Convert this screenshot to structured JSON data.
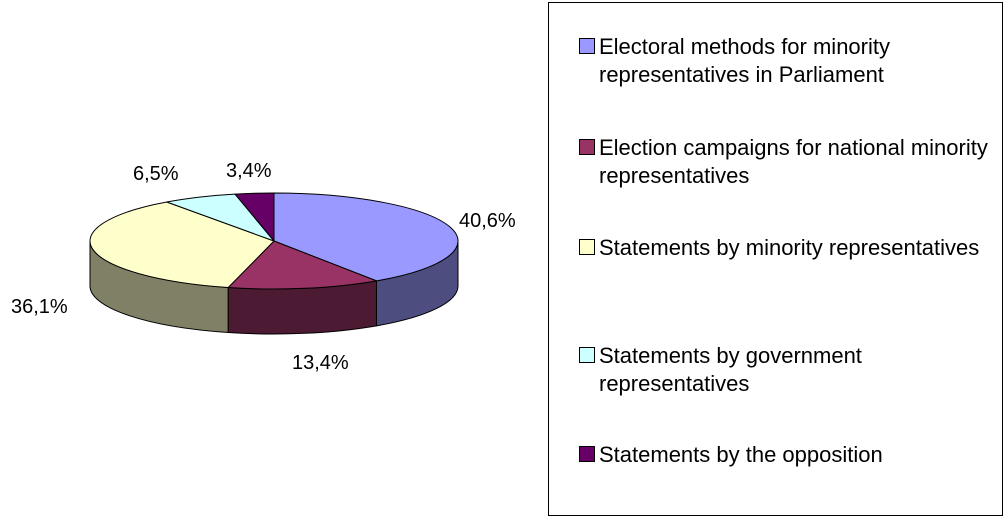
{
  "chart_data": {
    "type": "pie",
    "categories": [
      "Electoral methods for minority representatives in Parliament",
      "Election campaigns for national minority representatives",
      "Statements by minority representatives",
      "Statements by government representatives",
      "Statements by the opposition"
    ],
    "values": [
      40.6,
      13.4,
      36.1,
      6.5,
      3.4
    ],
    "labels": [
      "40,6%",
      "13,4%",
      "36,1%",
      "6,5%",
      "3,4%"
    ],
    "colors": [
      "#9999ff",
      "#993366",
      "#ffffcc",
      "#ccffff",
      "#660066"
    ],
    "side_colors": [
      "#4d4d80",
      "#4d1a33",
      "#808066",
      "#668080",
      "#330033"
    ],
    "legend_position": "right",
    "style": "3d"
  },
  "legend": {
    "items": [
      {
        "label": "Electoral methods for minority representatives in Parliament",
        "color": "#9999ff"
      },
      {
        "label": "Election campaigns for national minority representatives",
        "color": "#993366"
      },
      {
        "label": "Statements by minority representatives",
        "color": "#ffffcc"
      },
      {
        "label": "Statements by government representatives",
        "color": "#ccffff"
      },
      {
        "label": "Statements by the opposition",
        "color": "#660066"
      }
    ]
  }
}
